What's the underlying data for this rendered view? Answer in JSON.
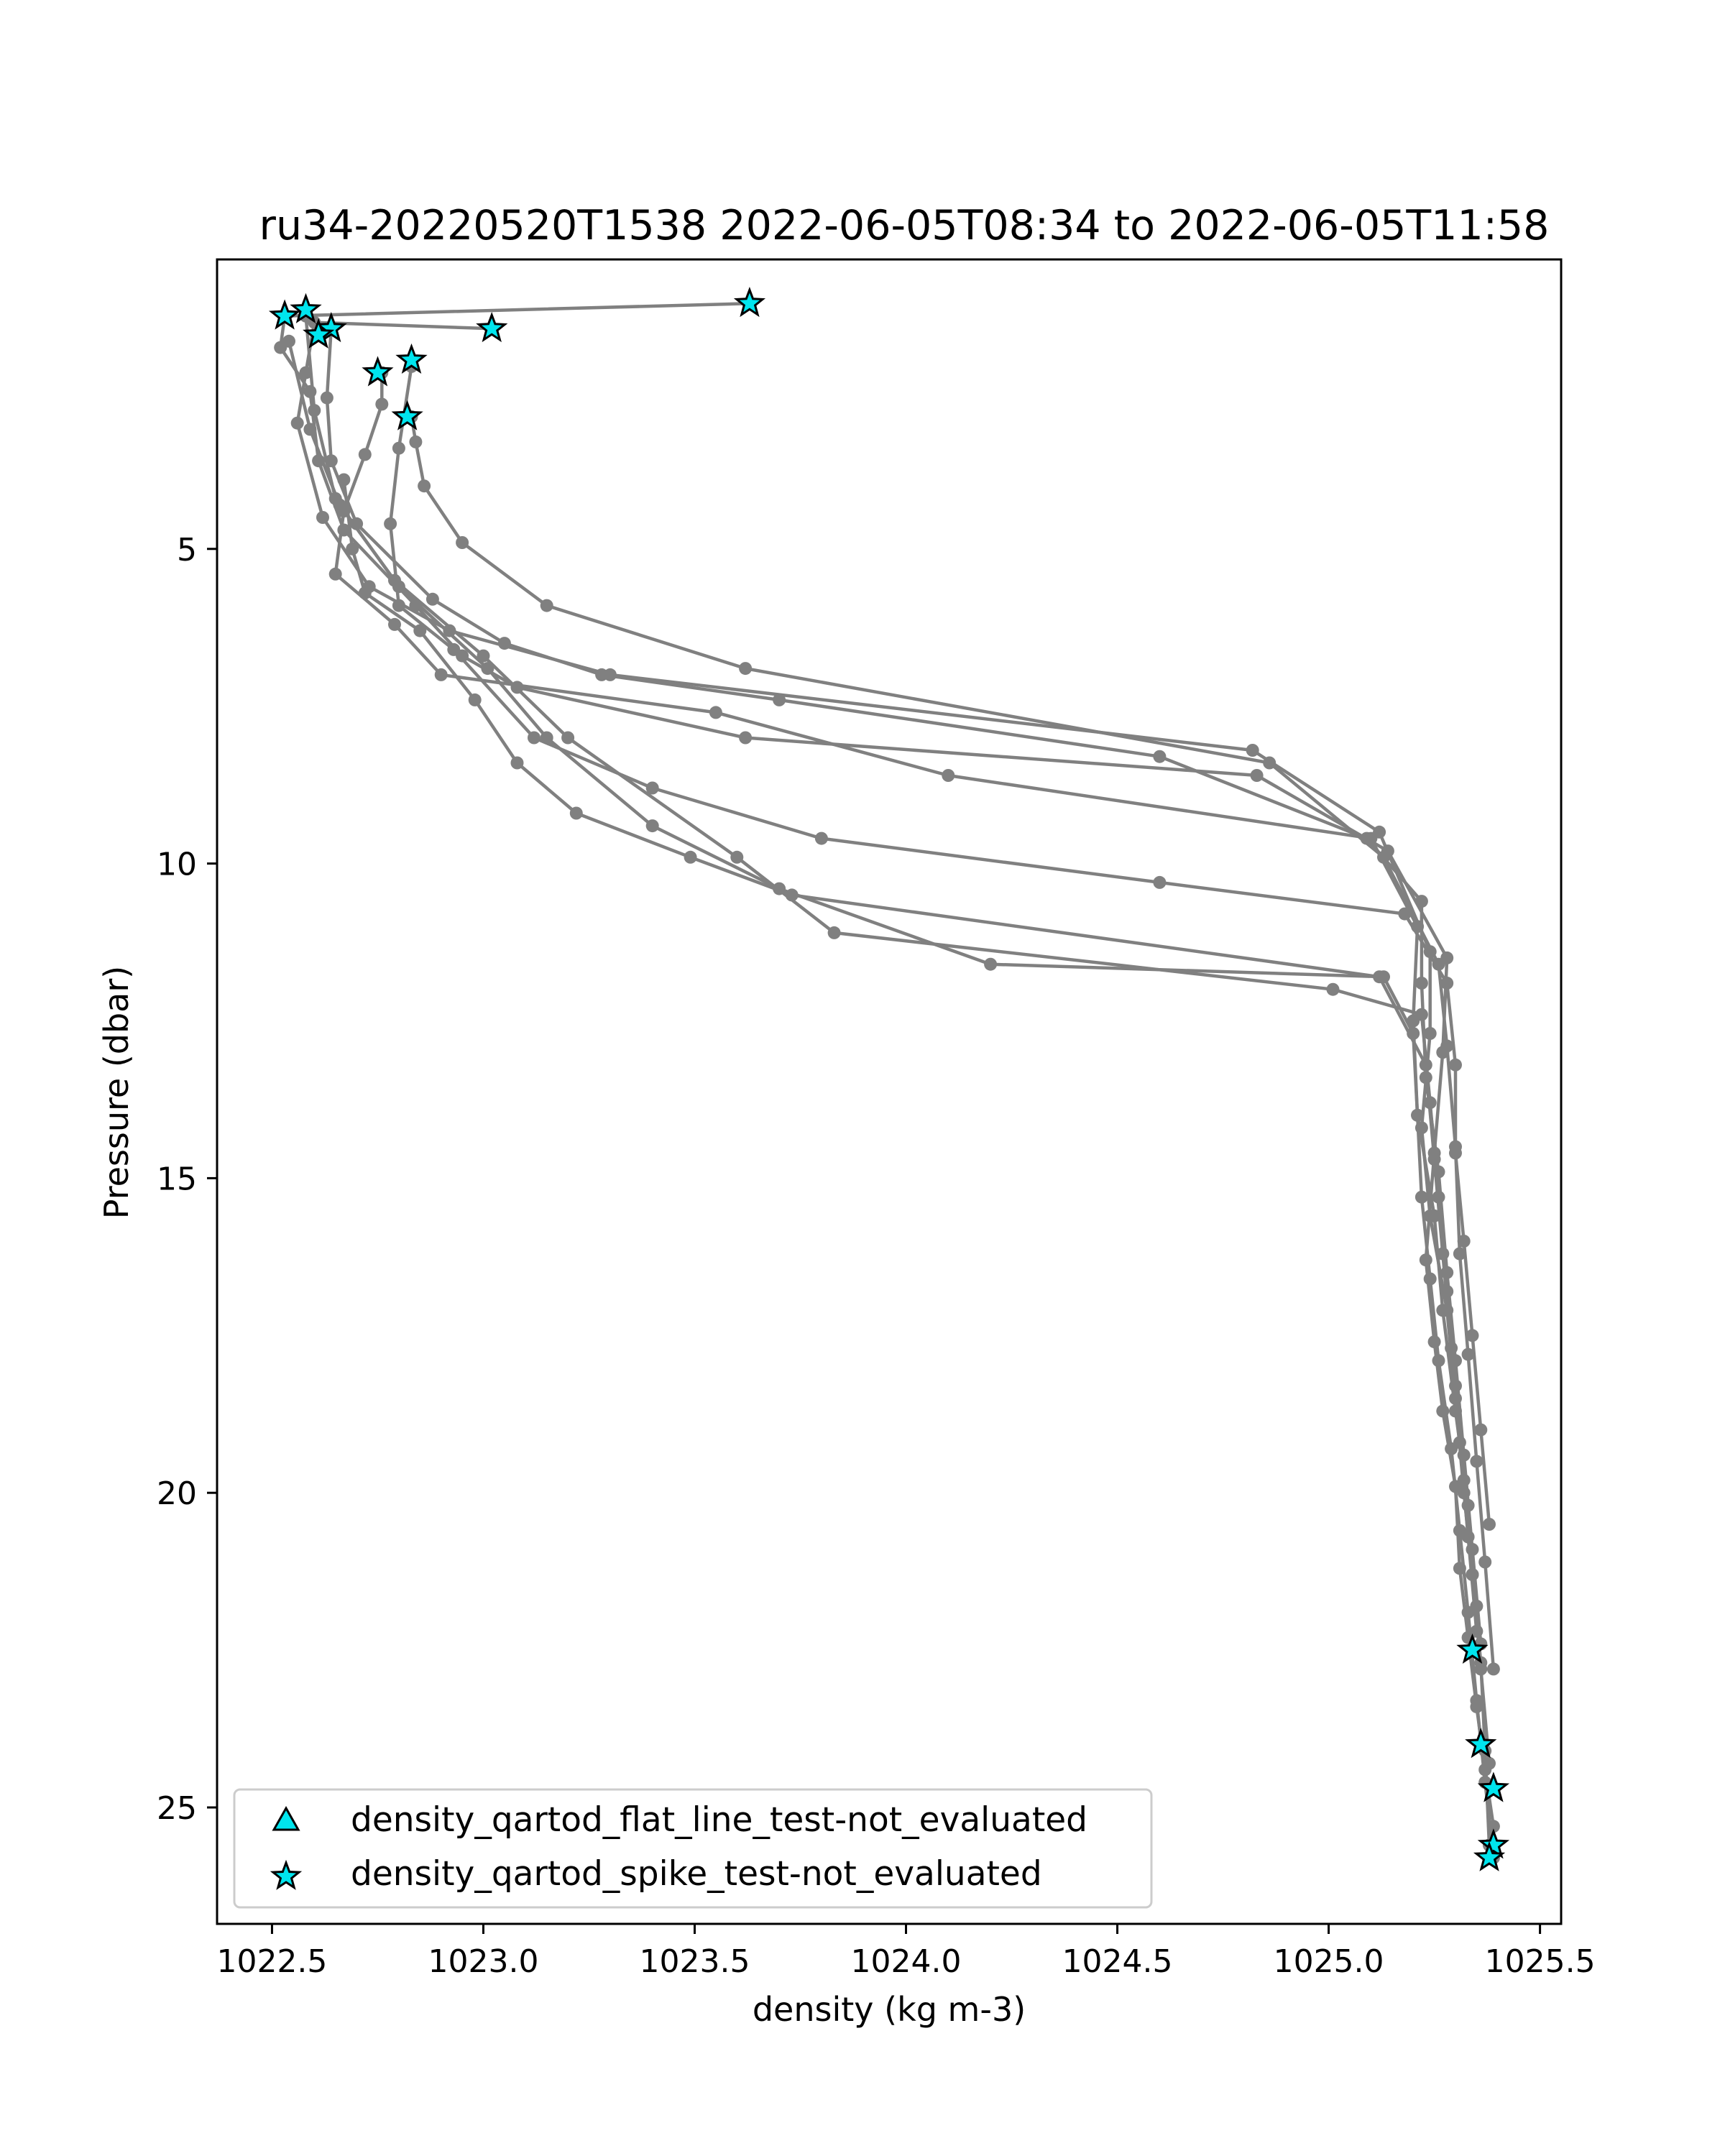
{
  "chart_data": {
    "type": "line",
    "title": "ru34-20220520T1538 2022-06-05T08:34 to 2022-06-05T11:58",
    "xlabel": "density (kg m-3)",
    "ylabel": "Pressure (dbar)",
    "xlim": [
      1022.37,
      1025.55
    ],
    "ylim": [
      26.85,
      0.4
    ],
    "y_inverted": true,
    "xticks": [
      1022.5,
      1023.0,
      1023.5,
      1024.0,
      1024.5,
      1025.0,
      1025.5
    ],
    "xtick_labels": [
      "1022.5",
      "1023.0",
      "1023.5",
      "1024.0",
      "1024.5",
      "1025.0",
      "1025.5"
    ],
    "yticks": [
      5,
      10,
      15,
      20,
      25
    ],
    "ytick_labels": [
      "5",
      "10",
      "15",
      "20",
      "25"
    ],
    "grid": false,
    "line_color": "#808080",
    "marker_color": "#00e5ee",
    "legend_position": "lower-left",
    "legend": [
      {
        "label": "density_qartod_flat_line_test-not_evaluated",
        "marker": "triangle",
        "color": "#00e5ee"
      },
      {
        "label": "density_qartod_spike_test-not_evaluated",
        "marker": "star",
        "color": "#00e5ee"
      }
    ],
    "series": [
      {
        "x": [
          1023.63,
          1022.53,
          1022.52,
          1022.59,
          1022.61,
          1022.67,
          1022.84,
          1022.95,
          1023.08,
          1023.62,
          1024.83,
          1025.14,
          1025.28,
          1025.27,
          1025.25,
          1025.23,
          1025.25,
          1025.27,
          1025.3,
          1025.31,
          1025.33,
          1025.35,
          1025.37,
          1025.39,
          1025.38
        ],
        "y": [
          1.1,
          1.3,
          1.8,
          2.5,
          3.6,
          4.7,
          5.9,
          6.7,
          7.2,
          8.0,
          8.6,
          9.8,
          11.5,
          13.0,
          14.6,
          16.3,
          17.6,
          18.7,
          19.9,
          21.2,
          22.3,
          23.4,
          24.4,
          25.3,
          25.8
        ]
      },
      {
        "x": [
          1023.02,
          1022.6,
          1022.58,
          1022.56,
          1022.62,
          1022.73,
          1022.92,
          1023.3,
          1024.82,
          1025.12,
          1025.24,
          1025.24,
          1025.22,
          1025.24,
          1025.28,
          1025.3,
          1025.32,
          1025.34,
          1025.36,
          1025.37,
          1025.38
        ],
        "y": [
          1.5,
          1.4,
          2.2,
          3.0,
          4.5,
          5.6,
          6.3,
          7.0,
          8.2,
          9.5,
          11.4,
          12.7,
          14.2,
          15.6,
          17.1,
          18.5,
          20.0,
          21.3,
          22.7,
          24.1,
          25.6
        ]
      },
      {
        "x": [
          1022.83,
          1022.84,
          1022.86,
          1022.95,
          1023.15,
          1023.62,
          1024.86,
          1025.13,
          1025.26,
          1025.28,
          1025.3,
          1025.31,
          1025.33,
          1025.35,
          1025.37,
          1025.39
        ],
        "y": [
          2.9,
          3.3,
          4.0,
          4.9,
          5.9,
          6.9,
          8.4,
          9.9,
          11.6,
          12.9,
          14.5,
          16.2,
          17.8,
          19.5,
          21.1,
          22.8
        ]
      },
      {
        "x": [
          1022.76,
          1022.76,
          1022.72,
          1022.67,
          1022.65,
          1022.79,
          1022.9,
          1023.55,
          1024.1,
          1025.1,
          1025.21,
          1025.2,
          1025.21,
          1025.25,
          1025.27,
          1025.3,
          1025.33,
          1025.35
        ],
        "y": [
          2.2,
          2.7,
          3.5,
          4.4,
          5.4,
          6.2,
          7.0,
          7.6,
          8.6,
          9.6,
          11.0,
          12.5,
          14.0,
          15.6,
          17.1,
          18.7,
          20.2,
          21.8
        ]
      },
      {
        "x": [
          1022.64,
          1022.63,
          1022.64,
          1022.7,
          1022.88,
          1023.05,
          1023.28,
          1023.7,
          1024.6,
          1025.09,
          1025.22,
          1025.22,
          1025.23,
          1025.26,
          1025.28,
          1025.3,
          1025.32,
          1025.34,
          1025.36
        ],
        "y": [
          1.5,
          2.6,
          3.6,
          4.6,
          5.8,
          6.5,
          7.0,
          7.4,
          8.3,
          9.6,
          10.6,
          11.9,
          13.4,
          14.9,
          16.5,
          17.9,
          19.4,
          20.9,
          22.4
        ]
      },
      {
        "x": [
          1022.83,
          1022.8,
          1022.78,
          1022.8,
          1022.93,
          1023.12,
          1023.4,
          1023.8,
          1024.6,
          1025.18,
          1025.28,
          1025.3,
          1025.3,
          1025.32,
          1025.34,
          1025.36,
          1025.38
        ],
        "y": [
          2.1,
          3.4,
          4.6,
          5.9,
          6.6,
          8.0,
          8.8,
          9.6,
          10.3,
          10.8,
          11.9,
          13.2,
          14.6,
          16.0,
          17.5,
          19.0,
          20.5
        ]
      },
      {
        "x": [
          1022.58,
          1022.6,
          1022.65,
          1022.8,
          1023.01,
          1023.15,
          1023.4,
          1023.7,
          1024.2,
          1025.13,
          1025.2,
          1025.21,
          1025.22,
          1025.24,
          1025.26,
          1025.29,
          1025.31,
          1025.33,
          1025.35,
          1025.37,
          1025.39
        ],
        "y": [
          1.3,
          2.8,
          4.2,
          5.6,
          6.9,
          8.0,
          9.4,
          10.4,
          11.6,
          11.8,
          12.7,
          14.0,
          15.3,
          16.6,
          17.9,
          19.3,
          20.6,
          21.9,
          23.3,
          24.6,
          25.8
        ]
      },
      {
        "x": [
          1022.54,
          1022.59,
          1022.66,
          1022.79,
          1023.0,
          1023.2,
          1023.6,
          1023.83,
          1025.01,
          1025.22,
          1025.24,
          1025.26,
          1025.28,
          1025.3,
          1025.32,
          1025.34,
          1025.36,
          1025.38
        ],
        "y": [
          1.7,
          3.1,
          4.3,
          5.5,
          6.7,
          8.0,
          9.9,
          11.1,
          12.0,
          12.4,
          13.8,
          15.3,
          16.8,
          18.3,
          19.8,
          21.3,
          22.8,
          24.3
        ]
      },
      {
        "x": [
          1022.67,
          1022.69,
          1022.72,
          1022.85,
          1022.98,
          1023.08,
          1023.22,
          1023.49,
          1023.73,
          1025.12,
          1025.23,
          1025.25,
          1025.27,
          1025.29,
          1025.31,
          1025.33,
          1025.35
        ],
        "y": [
          3.9,
          5.0,
          5.7,
          6.3,
          7.4,
          8.4,
          9.2,
          9.9,
          10.5,
          11.8,
          13.2,
          14.7,
          16.2,
          17.7,
          19.2,
          20.7,
          22.2
        ]
      }
    ],
    "flagged_points": [
      {
        "x": 1023.63,
        "y": 1.1
      },
      {
        "x": 1022.58,
        "y": 1.2
      },
      {
        "x": 1022.53,
        "y": 1.3
      },
      {
        "x": 1022.64,
        "y": 1.5
      },
      {
        "x": 1022.61,
        "y": 1.6
      },
      {
        "x": 1023.02,
        "y": 1.5
      },
      {
        "x": 1022.83,
        "y": 2.0
      },
      {
        "x": 1022.75,
        "y": 2.2
      },
      {
        "x": 1022.82,
        "y": 2.9
      },
      {
        "x": 1025.34,
        "y": 22.5
      },
      {
        "x": 1025.36,
        "y": 24.0
      },
      {
        "x": 1025.39,
        "y": 24.7
      },
      {
        "x": 1025.39,
        "y": 25.6
      },
      {
        "x": 1025.38,
        "y": 25.8
      }
    ]
  }
}
